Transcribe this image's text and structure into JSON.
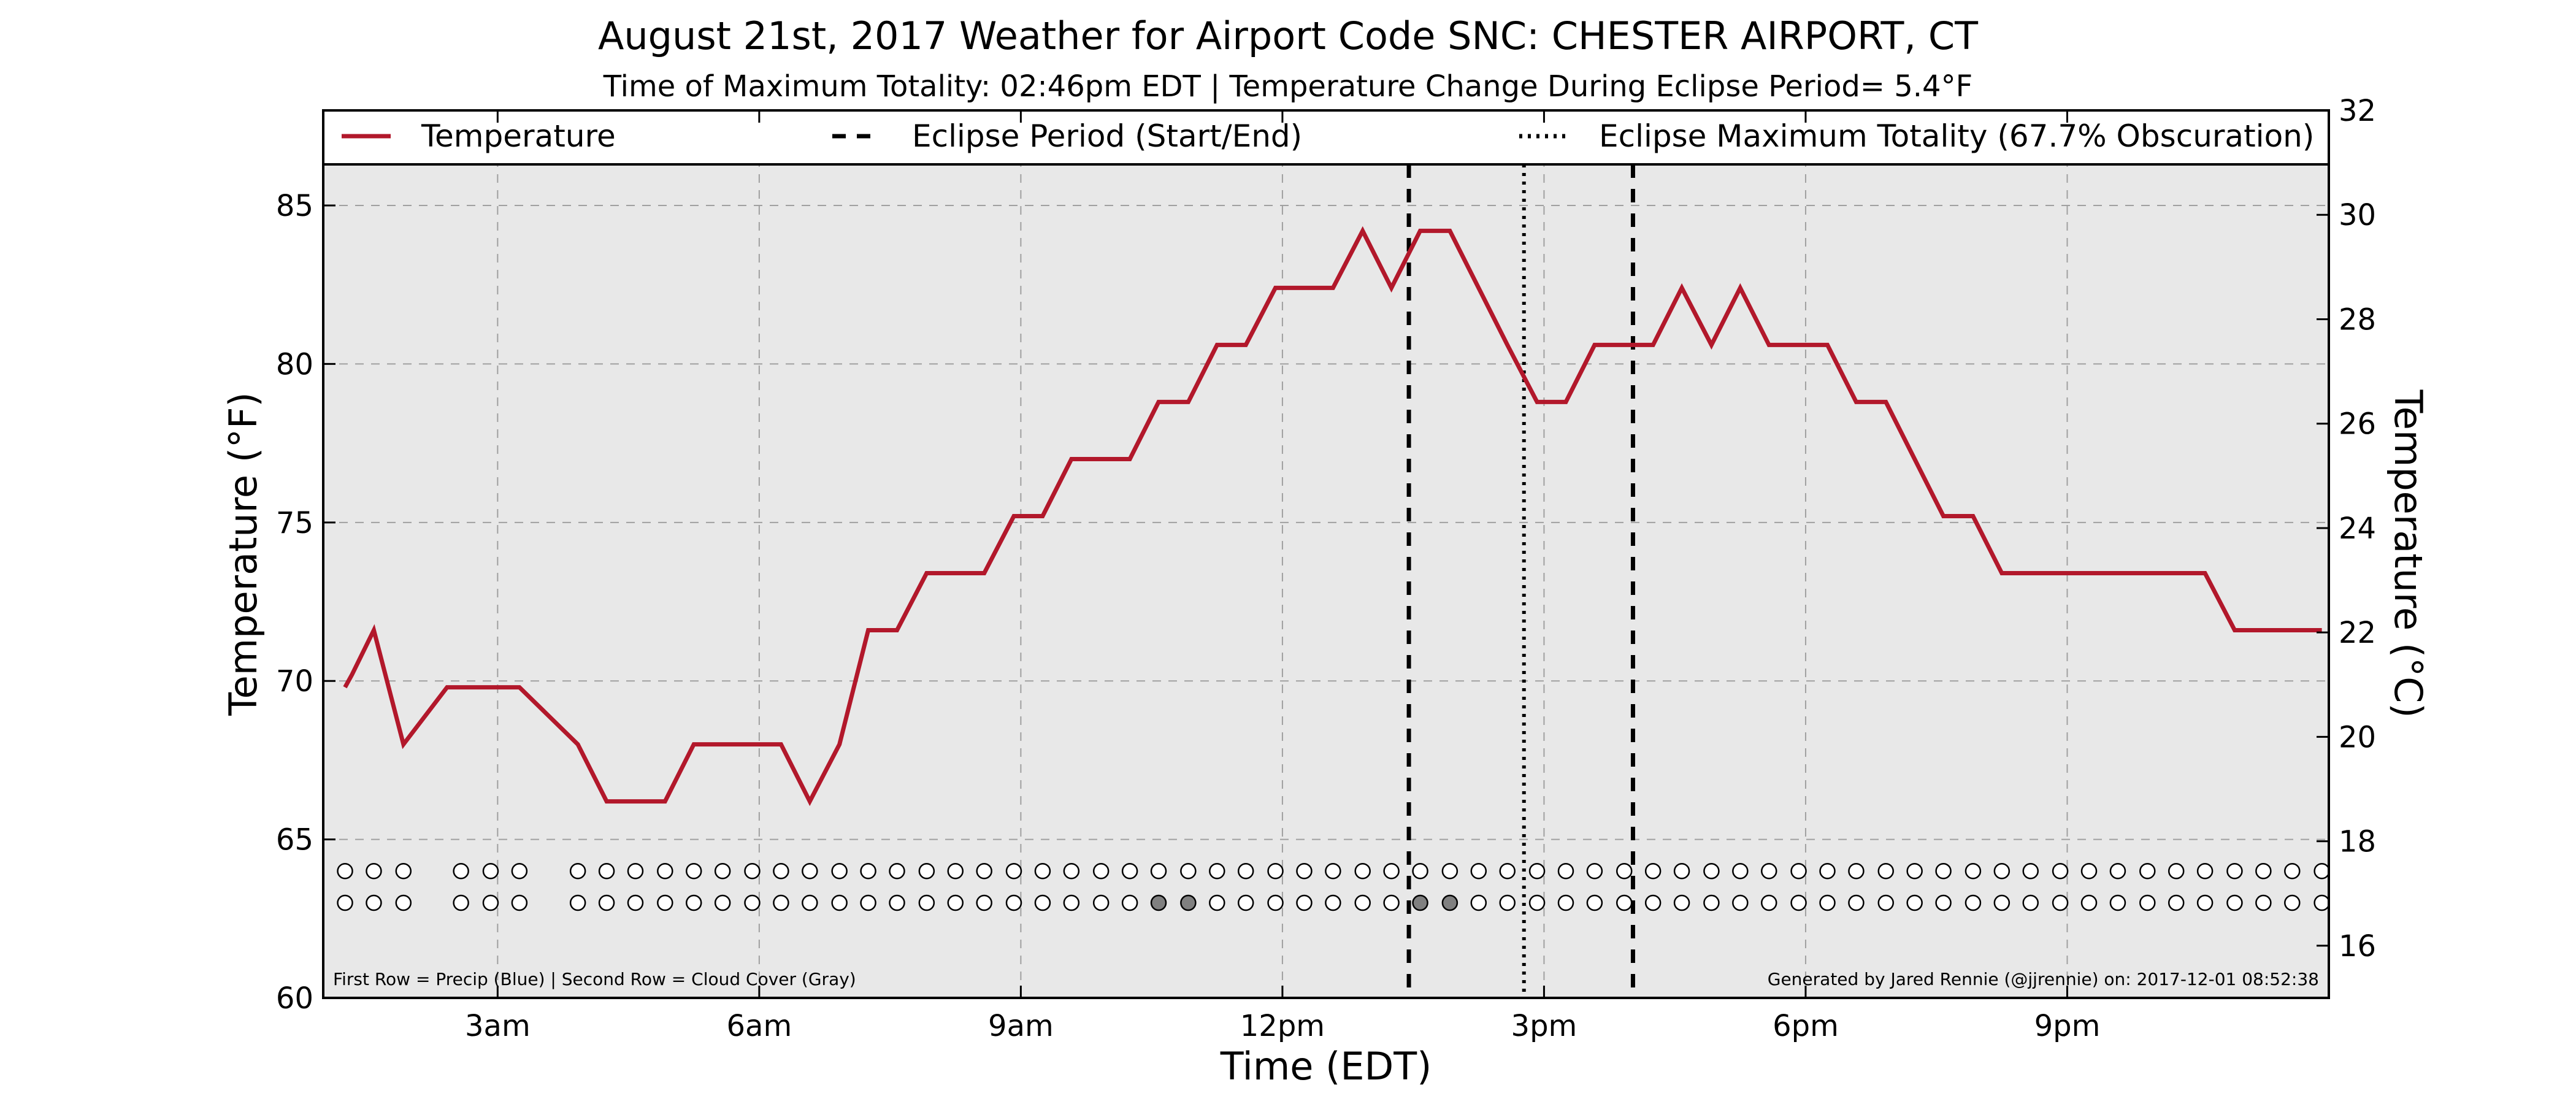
{
  "chart_data": {
    "type": "line",
    "title": "August 21st, 2017 Weather for Airport Code SNC: CHESTER AIRPORT, CT",
    "subtitle": "Time of Maximum Totality: 02:46pm EDT | Temperature Change During Eclipse Period= 5.4°F",
    "xlabel": "Time (EDT)",
    "ylabel": "Temperature (°F)",
    "ylabel_right": "Temperature (°C)",
    "xlim": [
      1.0,
      24.0
    ],
    "ylim": [
      60,
      88
    ],
    "ylim_right": [
      15,
      32
    ],
    "x_ticks": [
      {
        "x": 3,
        "label": "3am"
      },
      {
        "x": 6,
        "label": "6am"
      },
      {
        "x": 9,
        "label": "9am"
      },
      {
        "x": 12,
        "label": "12pm"
      },
      {
        "x": 15,
        "label": "3pm"
      },
      {
        "x": 18,
        "label": "6pm"
      },
      {
        "x": 21,
        "label": "9pm"
      }
    ],
    "y_ticks": [
      60,
      65,
      70,
      75,
      80,
      85
    ],
    "y_ticks_right": [
      16,
      18,
      20,
      22,
      24,
      26,
      28,
      30,
      32
    ],
    "grid": true,
    "legend_position": "top",
    "legend": [
      {
        "label": "Temperature",
        "style": "solid",
        "color": "#b2182b"
      },
      {
        "label": "Eclipse Period (Start/End)",
        "style": "dashed",
        "color": "#000000"
      },
      {
        "label": "Eclipse Maximum Totality (67.7% Obscuration)",
        "style": "dotted",
        "color": "#000000"
      }
    ],
    "series": [
      {
        "name": "Temperature",
        "color": "#b2182b",
        "x": [
          1.25,
          1.33,
          1.58,
          1.92,
          2.42,
          2.92,
          3.25,
          3.92,
          4.25,
          4.58,
          4.92,
          5.25,
          5.58,
          5.92,
          6.25,
          6.58,
          6.92,
          7.25,
          7.58,
          7.92,
          8.25,
          8.58,
          8.92,
          9.25,
          9.58,
          9.92,
          10.25,
          10.58,
          10.92,
          11.25,
          11.58,
          11.92,
          12.25,
          12.58,
          12.92,
          13.25,
          13.58,
          13.92,
          14.25,
          14.58,
          14.92,
          15.25,
          15.58,
          15.92,
          16.25,
          16.58,
          16.92,
          17.25,
          17.58,
          17.92,
          18.25,
          18.58,
          18.92,
          19.25,
          19.58,
          19.92,
          20.25,
          20.58,
          20.92,
          21.25,
          21.58,
          21.92,
          22.25,
          22.58,
          22.92,
          23.25,
          23.58,
          23.92
        ],
        "values": [
          69.8,
          70.2,
          71.6,
          68.0,
          69.8,
          69.8,
          69.8,
          68.0,
          66.2,
          66.2,
          66.2,
          68.0,
          68.0,
          68.0,
          68.0,
          66.2,
          68.0,
          71.6,
          71.6,
          73.4,
          73.4,
          73.4,
          75.2,
          75.2,
          77.0,
          77.0,
          77.0,
          78.8,
          78.8,
          80.6,
          80.6,
          82.4,
          82.4,
          82.4,
          84.2,
          82.4,
          84.2,
          84.2,
          82.4,
          80.6,
          78.8,
          78.8,
          80.6,
          80.6,
          80.6,
          82.4,
          80.6,
          82.4,
          80.6,
          80.6,
          80.6,
          78.8,
          78.8,
          77.0,
          75.2,
          75.2,
          73.4,
          73.4,
          73.4,
          73.4,
          73.4,
          73.4,
          73.4,
          73.4,
          71.6,
          71.6,
          71.6,
          71.6
        ]
      }
    ],
    "eclipse_start": 13.45,
    "eclipse_end": 16.02,
    "max_totality": 14.77,
    "indicator_rows": {
      "precip_y": 64.0,
      "cloud_y": 63.0,
      "x": [
        1.25,
        1.58,
        1.92,
        2.58,
        2.92,
        3.25,
        3.92,
        4.25,
        4.58,
        4.92,
        5.25,
        5.58,
        5.92,
        6.25,
        6.58,
        6.92,
        7.25,
        7.58,
        7.92,
        8.25,
        8.58,
        8.92,
        9.25,
        9.58,
        9.92,
        10.25,
        10.58,
        10.92,
        11.25,
        11.58,
        11.92,
        12.25,
        12.58,
        12.92,
        13.25,
        13.58,
        13.92,
        14.25,
        14.58,
        14.92,
        15.25,
        15.58,
        15.92,
        16.25,
        16.58,
        16.92,
        17.25,
        17.58,
        17.92,
        18.25,
        18.58,
        18.92,
        19.25,
        19.58,
        19.92,
        20.25,
        20.58,
        20.92,
        21.25,
        21.58,
        21.92,
        22.25,
        22.58,
        22.92,
        23.25,
        23.58,
        23.92
      ],
      "cloud_gray_x": [
        10.58,
        10.92,
        13.58,
        13.92
      ],
      "cloud_gray_color": "#808080",
      "precip_color": "#ffffff",
      "cloud_color": "#ffffff"
    },
    "plot_background": "#e8e8e8",
    "footnote_left": "First Row = Precip (Blue) | Second Row = Cloud Cover (Gray)",
    "footnote_right": "Generated by Jared Rennie (@jjrennie) on: 2017-12-01 08:52:38"
  }
}
